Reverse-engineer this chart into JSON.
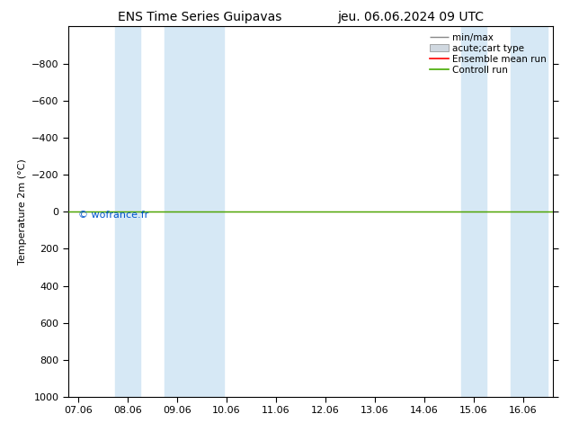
{
  "title_left": "ENS Time Series Guipavas",
  "title_right": "jeu. 06.06.2024 09 UTC",
  "ylabel": "Temperature 2m (°C)",
  "xlabel": "",
  "ylim_bottom": 1000,
  "ylim_top": -1000,
  "yticks": [
    -800,
    -600,
    -400,
    -200,
    0,
    200,
    400,
    600,
    800,
    1000
  ],
  "xtick_labels": [
    "07.06",
    "08.06",
    "09.06",
    "10.06",
    "11.06",
    "12.06",
    "13.06",
    "14.06",
    "15.06",
    "16.06"
  ],
  "xtick_positions": [
    0,
    1,
    2,
    3,
    4,
    5,
    6,
    7,
    8,
    9
  ],
  "blue_bands": [
    [
      0.75,
      1.25
    ],
    [
      1.75,
      2.95
    ],
    [
      7.75,
      8.25
    ],
    [
      8.75,
      9.5
    ]
  ],
  "green_line_y": 0,
  "red_line_y": 0,
  "band_color": "#d6e8f5",
  "green_color": "#44aa00",
  "red_color": "#ff0000",
  "minmax_color": "#888888",
  "watermark": "© wofrance.fr",
  "watermark_color": "#0055cc",
  "legend_labels": [
    "min/max",
    "acute;cart type",
    "Ensemble mean run",
    "Controll run"
  ],
  "background_color": "#ffffff",
  "title_fontsize": 10,
  "axis_fontsize": 8,
  "legend_fontsize": 7.5
}
